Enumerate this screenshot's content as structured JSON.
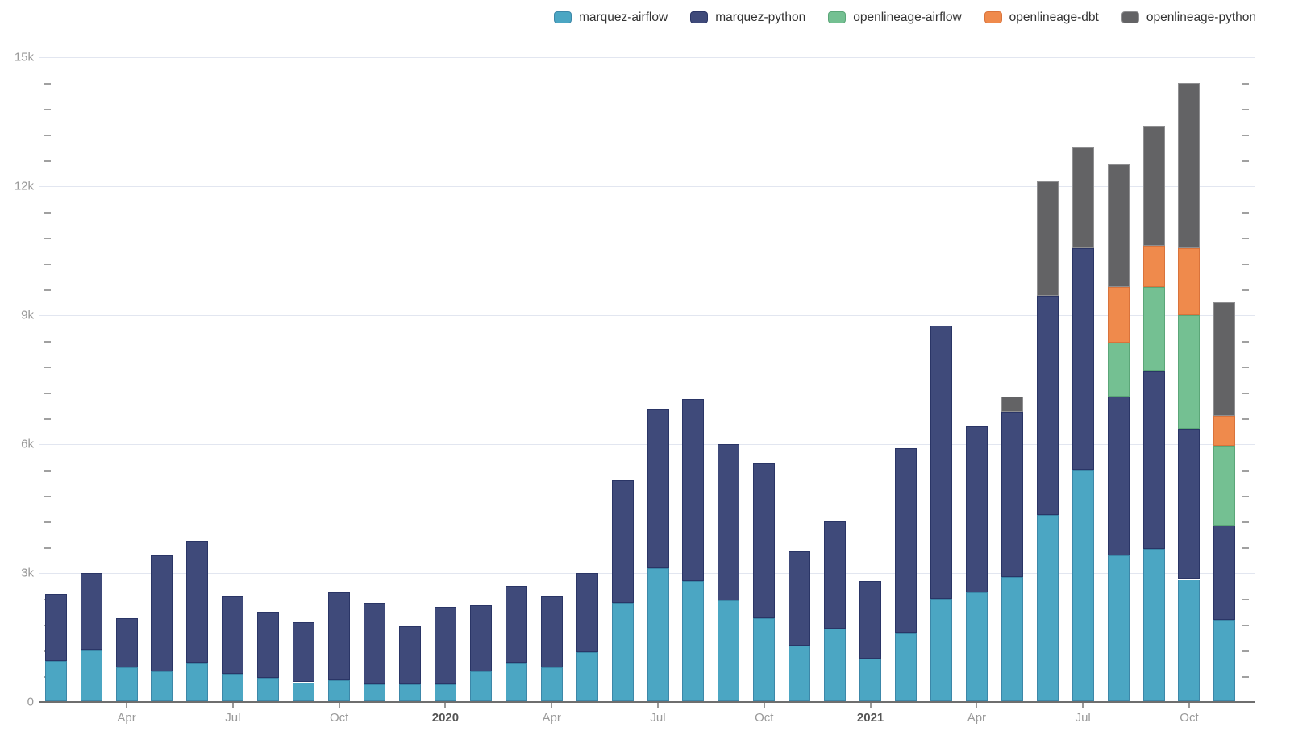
{
  "legend": {
    "items": [
      {
        "label": "marquez-airflow",
        "fill": "#4BA6C3",
        "border": "#3C87A8"
      },
      {
        "label": "marquez-python",
        "fill": "#3F4A7A",
        "border": "#2A3566"
      },
      {
        "label": "openlineage-airflow",
        "fill": "#74C092",
        "border": "#5BA678"
      },
      {
        "label": "openlineage-dbt",
        "fill": "#EF8A4C",
        "border": "#D9733B"
      },
      {
        "label": "openlineage-python",
        "fill": "#636365",
        "border": "#8f8f91"
      }
    ]
  },
  "axes": {
    "y_ticks": [
      {
        "label": "0",
        "value": 0
      },
      {
        "label": "3k",
        "value": 3000
      },
      {
        "label": "6k",
        "value": 6000
      },
      {
        "label": "9k",
        "value": 9000
      },
      {
        "label": "12k",
        "value": 12000
      },
      {
        "label": "15k",
        "value": 15000
      }
    ],
    "y_minor_step": 600,
    "x_ticks": [
      {
        "label": "Apr",
        "month_index": 2,
        "bold": false
      },
      {
        "label": "Jul",
        "month_index": 5,
        "bold": false
      },
      {
        "label": "Oct",
        "month_index": 8,
        "bold": false
      },
      {
        "label": "2020",
        "month_index": 11,
        "bold": true
      },
      {
        "label": "Apr",
        "month_index": 14,
        "bold": false
      },
      {
        "label": "Jul",
        "month_index": 17,
        "bold": false
      },
      {
        "label": "Oct",
        "month_index": 20,
        "bold": false
      },
      {
        "label": "2021",
        "month_index": 23,
        "bold": true
      },
      {
        "label": "Apr",
        "month_index": 26,
        "bold": false
      },
      {
        "label": "Jul",
        "month_index": 29,
        "bold": false
      },
      {
        "label": "Oct",
        "month_index": 32,
        "bold": false
      }
    ]
  },
  "chart_data": {
    "type": "bar",
    "stacked": true,
    "title": "",
    "xlabel": "",
    "ylabel": "",
    "ylim": [
      0,
      15000
    ],
    "grid": true,
    "legend_position": "top-right",
    "categories": [
      "Feb 2019",
      "Mar 2019",
      "Apr 2019",
      "May 2019",
      "Jun 2019",
      "Jul 2019",
      "Aug 2019",
      "Sep 2019",
      "Oct 2019",
      "Nov 2019",
      "Dec 2019",
      "Jan 2020",
      "Feb 2020",
      "Mar 2020",
      "Apr 2020",
      "May 2020",
      "Jun 2020",
      "Jul 2020",
      "Aug 2020",
      "Sep 2020",
      "Oct 2020",
      "Nov 2020",
      "Dec 2020",
      "Jan 2021",
      "Feb 2021",
      "Mar 2021",
      "Apr 2021",
      "May 2021",
      "Jun 2021",
      "Jul 2021",
      "Aug 2021",
      "Sep 2021",
      "Oct 2021",
      "Nov 2021"
    ],
    "series": [
      {
        "name": "marquez-airflow",
        "values": [
          950,
          1200,
          800,
          700,
          900,
          650,
          550,
          450,
          500,
          400,
          400,
          400,
          700,
          900,
          800,
          1150,
          2300,
          3100,
          2800,
          2350,
          1950,
          1300,
          1700,
          1000,
          1600,
          2400,
          2550,
          2900,
          4350,
          5400,
          3400,
          3550,
          2850,
          1900
        ]
      },
      {
        "name": "marquez-python",
        "values": [
          1550,
          1800,
          1150,
          2700,
          2850,
          1800,
          1550,
          1400,
          2050,
          1900,
          1350,
          1800,
          1550,
          1800,
          1650,
          1850,
          2850,
          3700,
          4250,
          3650,
          3600,
          2200,
          2500,
          1800,
          4300,
          6350,
          3850,
          3850,
          5100,
          5150,
          3700,
          4150,
          3500,
          2200
        ]
      },
      {
        "name": "openlineage-airflow",
        "values": [
          0,
          0,
          0,
          0,
          0,
          0,
          0,
          0,
          0,
          0,
          0,
          0,
          0,
          0,
          0,
          0,
          0,
          0,
          0,
          0,
          0,
          0,
          0,
          0,
          0,
          0,
          0,
          0,
          0,
          0,
          1250,
          1950,
          2650,
          1850
        ]
      },
      {
        "name": "openlineage-dbt",
        "values": [
          0,
          0,
          0,
          0,
          0,
          0,
          0,
          0,
          0,
          0,
          0,
          0,
          0,
          0,
          0,
          0,
          0,
          0,
          0,
          0,
          0,
          0,
          0,
          0,
          0,
          0,
          0,
          0,
          0,
          0,
          1300,
          950,
          1550,
          700
        ]
      },
      {
        "name": "openlineage-python",
        "values": [
          0,
          0,
          0,
          0,
          0,
          0,
          0,
          0,
          0,
          0,
          0,
          0,
          0,
          0,
          0,
          0,
          0,
          0,
          0,
          0,
          0,
          0,
          0,
          0,
          0,
          0,
          0,
          350,
          2650,
          2350,
          2850,
          2800,
          3850,
          2650
        ]
      }
    ]
  }
}
